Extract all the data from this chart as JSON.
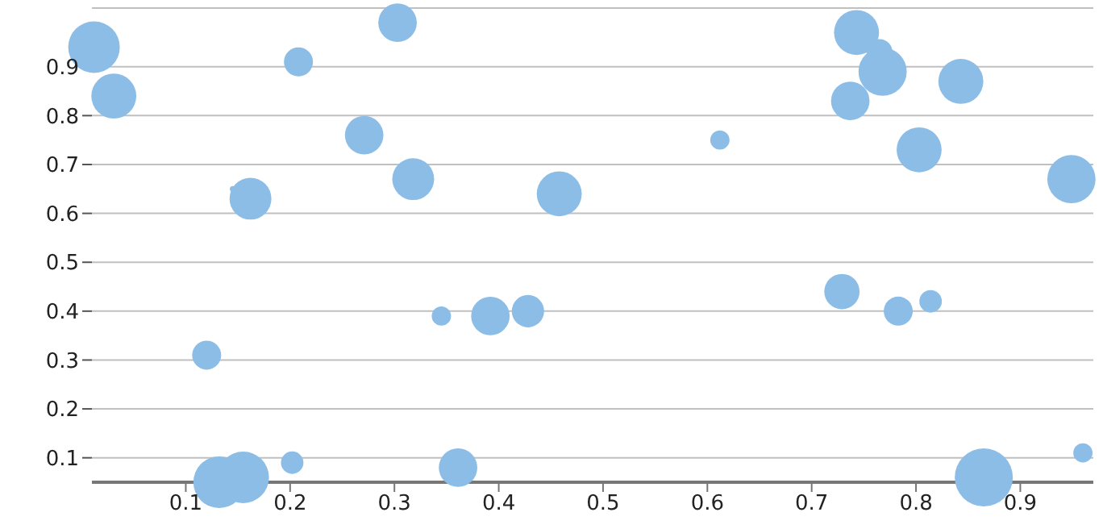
{
  "chart_data": {
    "type": "bubble",
    "color": "#8bbde6",
    "x": [
      0.012,
      0.031,
      0.162,
      0.145,
      0.208,
      0.303,
      0.271,
      0.318,
      0.458,
      0.743,
      0.765,
      0.768,
      0.737,
      0.843,
      0.612,
      0.803,
      0.949,
      0.345,
      0.392,
      0.428,
      0.12,
      0.202,
      0.132,
      0.155,
      0.361,
      0.729,
      0.783,
      0.814,
      0.865,
      0.96
    ],
    "values": [
      0.94,
      0.84,
      0.63,
      0.65,
      0.91,
      0.99,
      0.76,
      0.67,
      0.64,
      0.97,
      0.93,
      0.89,
      0.83,
      0.87,
      0.75,
      0.73,
      0.67,
      0.39,
      0.39,
      0.4,
      0.31,
      0.09,
      0.05,
      0.06,
      0.08,
      0.44,
      0.4,
      0.42,
      0.06,
      0.11
    ],
    "sizes": [
      0.79,
      0.6,
      0.52,
      0.01,
      0.25,
      0.44,
      0.44,
      0.52,
      0.6,
      0.6,
      0.2,
      0.69,
      0.44,
      0.6,
      0.11,
      0.6,
      0.69,
      0.11,
      0.44,
      0.31,
      0.25,
      0.15,
      0.79,
      0.79,
      0.44,
      0.37,
      0.25,
      0.15,
      1,
      0.11
    ],
    "xlim": [
      0.01,
      0.97
    ],
    "ylim": [
      0.05,
      1.02
    ],
    "xticks": [
      0.1,
      0.2,
      0.3,
      0.4,
      0.5,
      0.6,
      0.7,
      0.8,
      0.9
    ],
    "yticks": [
      0.1,
      0.2,
      0.3,
      0.4,
      0.5,
      0.6,
      0.7,
      0.8,
      0.9
    ],
    "grid": "y"
  }
}
